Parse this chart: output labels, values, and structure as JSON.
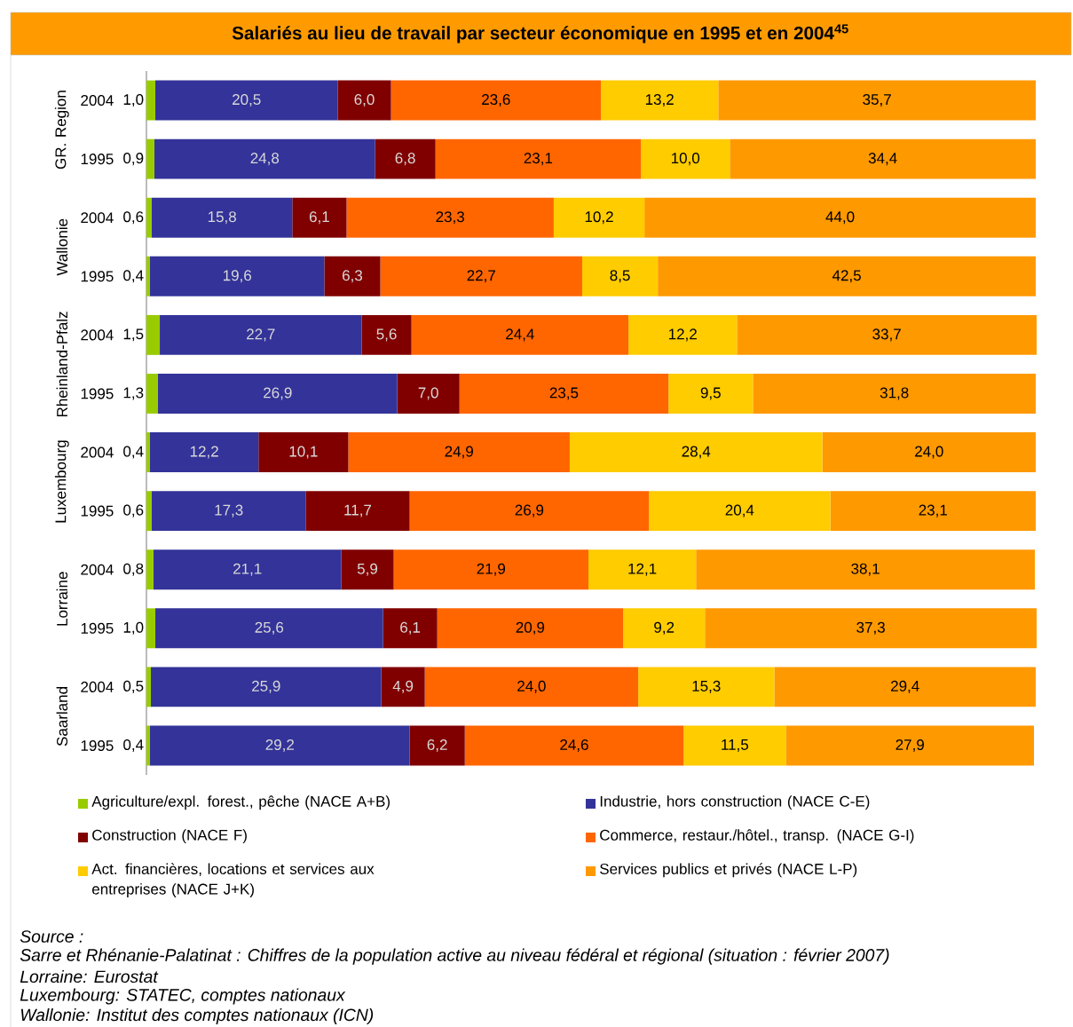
{
  "chart_data": {
    "type": "bar",
    "title": "Salariés au lieu de travail par secteur économique en 1995 et en 2004$^{45}$",
    "orientation": "horizontal",
    "stacked": true,
    "xlim": [
      0,
      100
    ],
    "tick_labels": "y",
    "legend": "bottom",
    "categories": [
      "2004",
      "1995",
      "2004",
      "1995",
      "2004",
      "1995",
      "2004",
      "1995",
      "2004",
      "1995",
      "2004",
      "1995"
    ],
    "series": [
      {
        "name": "Agriculture/expl. forest., pêche (NACE A+B)",
        "color": "#99cc00",
        "values": [
          1.0,
          0.9,
          0.6,
          0.4,
          1.5,
          1.3,
          0.4,
          0.6,
          0.8,
          1.0,
          0.5,
          0.4
        ],
        "value_labels": [
          "1,0",
          "0,9",
          "0,6",
          "0,4",
          "1,5",
          "1,3",
          "0,4",
          "0,6",
          "0,8",
          "1,0",
          "0,5",
          "0,4"
        ]
      },
      {
        "name": "Industrie, hors construction (NACE C-E)",
        "color": "#333399",
        "values": [
          20.5,
          24.8,
          15.8,
          19.6,
          22.7,
          26.9,
          12.2,
          17.3,
          21.1,
          25.6,
          25.9,
          29.2
        ],
        "value_labels": [
          "20,5",
          "24,8",
          "15,8",
          "19,6",
          "22,7",
          "26,9",
          "12,2",
          "17,3",
          "21,1",
          "25,6",
          "25,9",
          "29,2"
        ]
      },
      {
        "name": "Construction (NACE F)",
        "color": "#800000",
        "values": [
          6.0,
          6.8,
          6.1,
          6.3,
          5.6,
          7.0,
          10.1,
          11.7,
          5.9,
          6.1,
          4.9,
          6.2
        ],
        "value_labels": [
          "6,0",
          "6,8",
          "6,1",
          "6,3",
          "5,6",
          "7,0",
          "10,1",
          "11,7",
          "5,9",
          "6,1",
          "4,9",
          "6,2"
        ]
      },
      {
        "name": "Commerce, restaur./hôtel., transp. (NACE G-I)",
        "color": "#ff6600",
        "values": [
          23.6,
          23.1,
          23.3,
          22.7,
          24.4,
          23.5,
          24.9,
          26.9,
          21.9,
          20.9,
          24.0,
          24.6
        ],
        "value_labels": [
          "23,6",
          "23,1",
          "23,3",
          "22,7",
          "24,4",
          "23,5",
          "24,9",
          "26,9",
          "21,9",
          "20,9",
          "24,0",
          "24,6"
        ]
      },
      {
        "name": "Act. financières, locations et services aux entreprises (NACE J+K)",
        "color": "#ffcc00",
        "values": [
          13.2,
          10.0,
          10.2,
          8.5,
          12.2,
          9.5,
          28.4,
          20.4,
          12.1,
          9.2,
          15.3,
          11.5
        ],
        "value_labels": [
          "13,2",
          "10,0",
          "10,2",
          "8,5",
          "12,2",
          "9,5",
          "28,4",
          "20,4",
          "12,1",
          "9,2",
          "15,3",
          "11,5"
        ]
      },
      {
        "name": "Services publics et privés (NACE L-P)",
        "color": "#ff9900",
        "values": [
          35.7,
          34.4,
          44.0,
          42.5,
          33.7,
          31.8,
          24.0,
          23.1,
          38.1,
          37.3,
          29.4,
          27.9
        ],
        "value_labels": [
          "35,7",
          "34,4",
          "44,0",
          "42,5",
          "33,7",
          "31,8",
          "24,0",
          "23,1",
          "38,1",
          "37,3",
          "29,4",
          "27,9"
        ]
      }
    ],
    "annotations": [
      "GR. Region",
      "Wallonie",
      "Rheinland-Pfalz",
      "Luxembourg",
      "Lorraine",
      "Saarland",
      "Source :",
      "Sarre et Rhénanie-Palatinat : Chiffres de la population active au niveau fédéral et régional (situation : février 2007)",
      "Lorraine: Eurostat",
      "Luxembourg: STATEC, comptes nationaux",
      "Wallonie: Institut des comptes nationaux (ICN)"
    ]
  }
}
